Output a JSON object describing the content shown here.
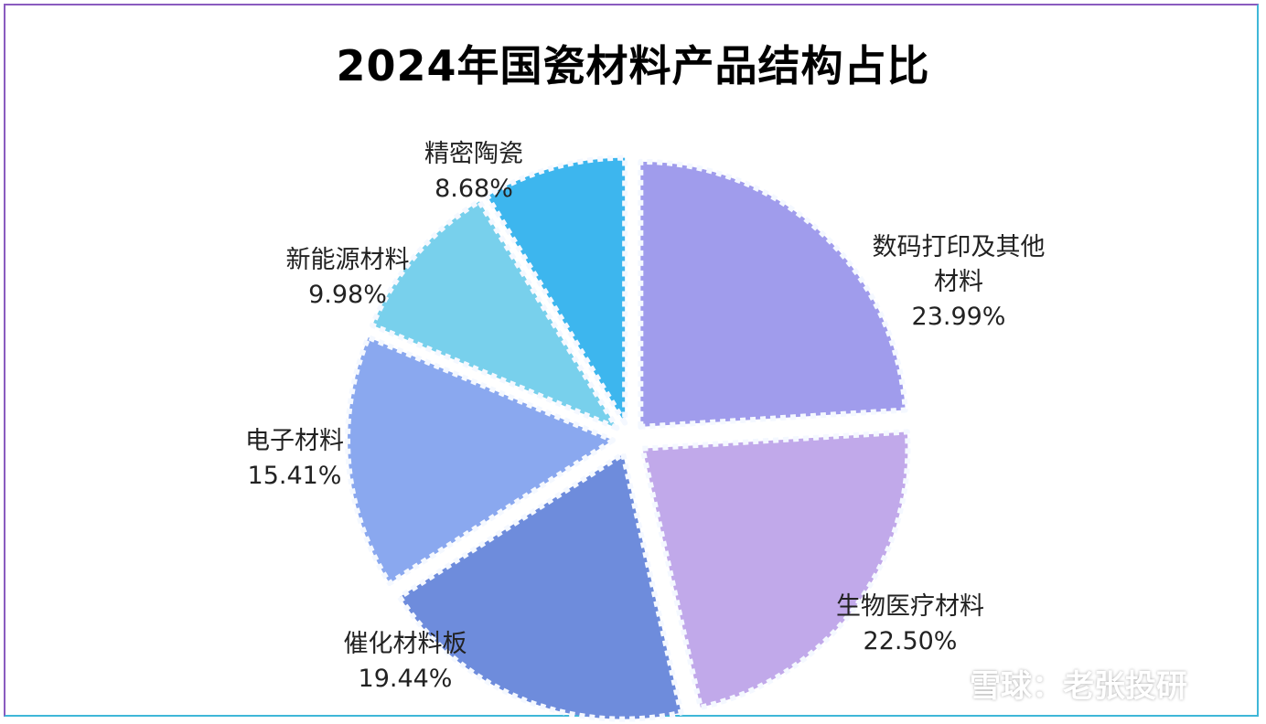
{
  "chart_data": {
    "type": "pie",
    "title": "2024年国瓷材料产品结构占比",
    "slices": [
      {
        "label_lines": [
          "数码打印及其他",
          "材料"
        ],
        "value": 23.99,
        "value_label": "23.99%",
        "color": "#a09cec"
      },
      {
        "label_lines": [
          "生物医疗材料"
        ],
        "value": 22.5,
        "value_label": "22.50%",
        "color": "#c1a9ea"
      },
      {
        "label_lines": [
          "催化材料板"
        ],
        "value": 19.44,
        "value_label": "19.44%",
        "color": "#6e8cdc"
      },
      {
        "label_lines": [
          "电子材料"
        ],
        "value": 15.41,
        "value_label": "15.41%",
        "color": "#8aa8ef"
      },
      {
        "label_lines": [
          "新能源材料"
        ],
        "value": 9.98,
        "value_label": "9.98%",
        "color": "#78d0ec"
      },
      {
        "label_lines": [
          "精密陶瓷"
        ],
        "value": 8.68,
        "value_label": "8.68%",
        "color": "#3db6ee"
      }
    ]
  },
  "watermark": {
    "text": "雪球：老张投研"
  }
}
